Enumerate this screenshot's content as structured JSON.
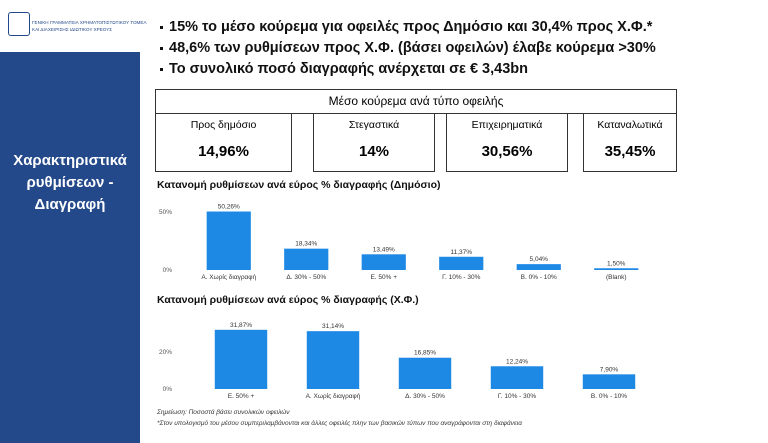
{
  "slide": {
    "logo": [
      "ΓΕΝΙΚΗ ΓΡΑΜΜΑΤΕΙΑ ΧΡΗΜΑΤΟΠΙΣΤΩΤΙΚΟΥ ΤΟΜΕΑ",
      "ΚΑΙ ΔΙΑΧΕΙΡΙΣΗΣ ΙΔΙΩΤΙΚΟΥ ΧΡΕΟΥΣ"
    ],
    "side_title": [
      "Χαρακτηριστικά",
      "ρυθμίσεων -",
      "Διαγραφή"
    ],
    "bullets": [
      "15% το μέσο κούρεμα για οφειλές προς Δημόσιο και 30,4% προς Χ.Φ.*",
      "48,6% των ρυθμίσεων προς Χ.Φ. (βάσει οφειλών) έλαβε κούρεμα >30%",
      "Το συνολικό ποσό διαγραφής ανέρχεται σε € 3,43bn"
    ],
    "summary": {
      "title": "Μέσο κούρεμα ανά τύπο οφειλής",
      "cards": [
        {
          "name": "Προς δημόσιο",
          "value": "14,96%"
        },
        {
          "name": "Στεγαστικά",
          "value": "14%"
        },
        {
          "name": "Επιχειρηματικά",
          "value": "30,56%"
        },
        {
          "name": "Καταναλωτικά",
          "value": "35,45%"
        }
      ]
    },
    "notes": [
      "Σημείωση: Ποσοστά βάσει συνολικών οφειλών",
      "*Στον υπολογισμό του μέσου συμπεριλαμβάνονται και άλλες οφειλές πλην των βασικών τύπων που αναγράφονται στη διαφάνεια"
    ]
  },
  "chart_data": [
    {
      "type": "bar",
      "title": "Κατανομή ρυθμίσεων ανά εύρος % διαγραφής (Δημόσιο)",
      "color": "#1e88e5",
      "categories": [
        "Α. Χωρίς διαγραφή",
        "Δ. 30% - 50%",
        "Ε. 50% +",
        "Γ. 10% - 30%",
        "Β. 0% - 10%",
        "(Blank)"
      ],
      "values": [
        50.26,
        18.34,
        13.49,
        11.37,
        5.04,
        1.5
      ],
      "value_labels": [
        "50,26%",
        "18,34%",
        "13,49%",
        "11,37%",
        "5,04%",
        "1,50%"
      ],
      "ylim": [
        0,
        55
      ],
      "yticks": [
        {
          "value": 0,
          "label": "0%"
        },
        {
          "value": 50,
          "label": "50%"
        }
      ]
    },
    {
      "type": "bar",
      "title": "Κατανομή ρυθμίσεων ανά εύρος % διαγραφής (Χ.Φ.)",
      "color": "#1e88e5",
      "categories": [
        "Ε. 50% +",
        "Α. Χωρίς διαγραφή",
        "Δ. 30% - 50%",
        "Γ. 10% - 30%",
        "Β. 0% - 10%"
      ],
      "values": [
        31.87,
        31.14,
        16.85,
        12.24,
        7.9
      ],
      "value_labels": [
        "31,87%",
        "31,14%",
        "16,85%",
        "12,24%",
        "7,90%"
      ],
      "ylim": [
        0,
        35
      ],
      "yticks": [
        {
          "value": 0,
          "label": "0%"
        },
        {
          "value": 20,
          "label": "20%"
        }
      ]
    }
  ]
}
